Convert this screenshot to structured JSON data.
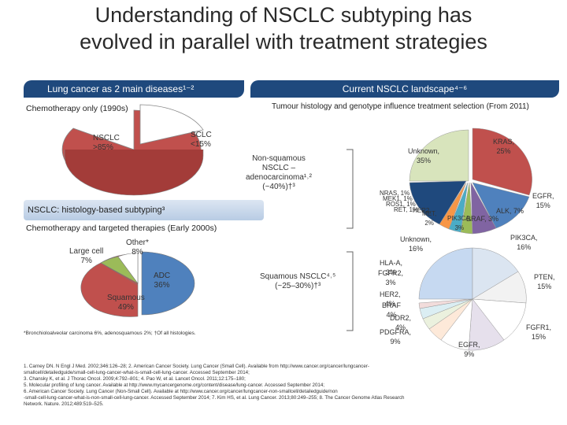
{
  "title": {
    "line1": "Understanding of NSCLC subtyping has",
    "line2": "evolved in parallel with treatment strategies"
  },
  "left_banner": "Lung cancer as 2 main diseases¹⁻²",
  "right_banner": "Current NSCLC landscape⁴⁻⁶",
  "chemo_only": "Chemotherapy only (1990s)",
  "tumour_note": "Tumour histology and genotype influence treatment selection (From 2011)",
  "pie1": {
    "nsclc": "NSCLC\n>85%",
    "sclc": "SCLC\n<15%",
    "colors": {
      "nsclc": "#c0504d",
      "sclc": "#ffffff"
    }
  },
  "histology_bar": "NSCLC: histology-based subtyping³",
  "chemo_targeted": "Chemotherapy and targeted therapies (Early 2000s)",
  "pie2": {
    "large_cell": "Large cell\n7%",
    "other": "Other*\n8%",
    "adc": "ADC\n36%",
    "squamous": "Squamous\n49%",
    "colors": {
      "adc": "#4f81bd",
      "squamous": "#c0504d",
      "large": "#9bbb59",
      "other": "#ffffff"
    }
  },
  "nonsq_label": "Non-squamous\nNSCLC –\nadenocarcinoma¹˒²\n(~40%)†³",
  "sq_label": "Squamous NSCLC⁴˒⁵\n(~25–30%)†³",
  "pie3": {
    "unknown": "Unknown,\n35%",
    "kras": "KRAS,\n25%",
    "egfr": "EGFR,\n15%",
    "alk": "ALK, 7%",
    "braf": "BRAF, 3%",
    "pik3ca": "PIK3CA,\n3%",
    "met": "MET,\n2%",
    "her2": "HER2,",
    "clutter1": "NRAS, 1%",
    "clutter2": "MEK1, 1%",
    "clutter3": "ROS1, 1%",
    "clutter4": "RET, 1%",
    "colors": [
      "#d8e4bc",
      "#c0504d",
      "#4f81bd",
      "#8064a2",
      "#9bbb59",
      "#4bacc6",
      "#f79646",
      "#1f497d"
    ]
  },
  "pie4": {
    "unknown": "Unknown,\n16%",
    "pik3ca": "PIK3CA,\n16%",
    "hla": "HLA-A,\n3%",
    "fgfr2": "FGFR2,\n3%",
    "pten": "PTEN,\n15%",
    "her2": "HER2,\n4%",
    "braf": "BRAF\n4%",
    "ddr2": "DDR2,\n4%",
    "pdgfra": "PDGFRA,\n9%",
    "egfr": "EGFR,\n9%",
    "fgfr1": "FGFR1,\n15%",
    "colors": [
      "#c6d9f1",
      "#4f81bd",
      "#c0504d",
      "#9bbb59",
      "#8064a2",
      "#4bacc6",
      "#f79646",
      "#2c4d75",
      "#7f7f7f",
      "#4f6228",
      "#ffffff"
    ]
  },
  "footnote_star": "*Bronchioloalveolar carcinoma 6%, adenosquamous 2%; †Of all histologies.",
  "references": [
    "1. Carney DN. N Engl J Med. 2002;346:126–28; 2. American Cancer Society. Lung Cancer (Small Cell). Available from http://www.cancer.org/cancer/lungcancer-",
    "smallcell/detailedguide/small-cell-lung-cancer-what-is-small-cell-lung-cancer. Accessed September 2014;",
    "3. Chansky K, et al. J Thorac Oncol. 2009;4:792–801; 4. Pao W, et al. Lancet Oncol. 2011;12:175–180;",
    "5. Molecular profiling of lung cancer. Available at http://www.mycancergenome.org/content/disease/lung-cancer. Accessed September 2014;",
    "6. American Cancer Society. Lung Cancer (Non-Small Cell). Available at http://www.cancer.org/cancer/lungcancer-non-smallcell/detailedguide/non",
    "-small-cell-lung-cancer-what-is-non-small-cell-lung-cancer. Accessed September 2014; 7. Kim HS, et al. Lung Cancer. 2013;80:249–255; 8. The Cancer Genome Atlas Research",
    "Network. Nature. 2012;489:519–525."
  ]
}
